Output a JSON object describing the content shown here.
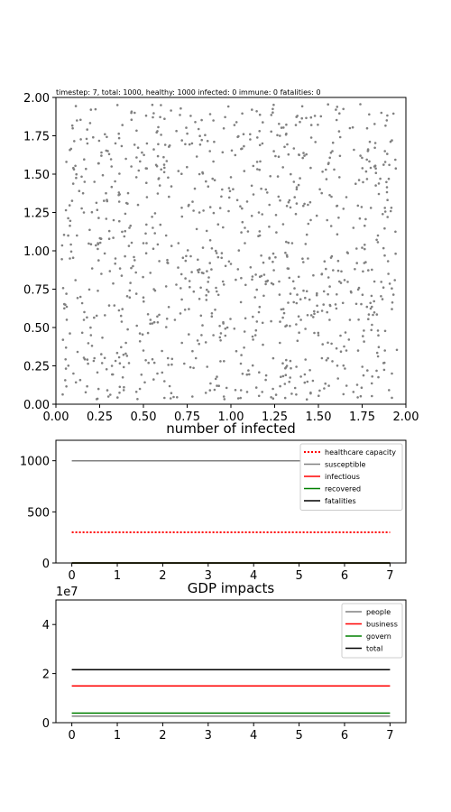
{
  "status_text": "timestep: 7, total: 1000, healthy: 1000 infected: 0 immune: 0 fatalities: 0",
  "colors": {
    "points": "#808080",
    "healthcare_capacity": "#ff0000",
    "susceptible": "#808080",
    "infectious": "#ff0000",
    "recovered": "#008000",
    "fatalities": "#000000",
    "people": "#808080",
    "business": "#ff0000",
    "govern": "#008000",
    "total": "#000000"
  },
  "chart_data": [
    {
      "type": "scatter",
      "title": "",
      "xlim": [
        0,
        2
      ],
      "ylim": [
        0,
        2
      ],
      "x_ticks": [
        "0.00",
        "0.25",
        "0.50",
        "0.75",
        "1.00",
        "1.25",
        "1.50",
        "1.75",
        "2.00"
      ],
      "y_ticks": [
        "0.00",
        "0.25",
        "0.50",
        "0.75",
        "1.00",
        "1.25",
        "1.50",
        "1.75",
        "2.00"
      ],
      "point_count": 1000,
      "population": {
        "healthy": 1000,
        "infected": 0,
        "immune": 0,
        "fatalities": 0
      },
      "sample_points": [
        [
          0.06,
          1.58
        ],
        [
          0.12,
          1.85
        ],
        [
          0.18,
          1.7
        ],
        [
          0.22,
          1.45
        ],
        [
          0.28,
          1.76
        ],
        [
          0.33,
          1.2
        ],
        [
          0.4,
          1.6
        ],
        [
          0.45,
          1.9
        ],
        [
          0.52,
          1.35
        ],
        [
          0.58,
          1.78
        ],
        [
          0.63,
          1.1
        ],
        [
          0.7,
          1.52
        ],
        [
          0.77,
          1.88
        ],
        [
          0.82,
          1.25
        ],
        [
          0.88,
          1.65
        ],
        [
          0.95,
          1.4
        ],
        [
          1.02,
          1.82
        ],
        [
          1.08,
          1.15
        ],
        [
          1.15,
          1.58
        ],
        [
          1.22,
          1.3
        ],
        [
          1.28,
          1.75
        ],
        [
          1.35,
          1.05
        ],
        [
          1.42,
          1.62
        ],
        [
          1.48,
          1.88
        ],
        [
          1.55,
          1.2
        ],
        [
          1.62,
          1.48
        ],
        [
          1.68,
          1.8
        ],
        [
          1.75,
          1.02
        ],
        [
          1.82,
          1.55
        ],
        [
          1.88,
          1.28
        ],
        [
          1.92,
          1.72
        ],
        [
          0.08,
          0.95
        ],
        [
          0.14,
          0.7
        ],
        [
          0.2,
          0.45
        ],
        [
          0.26,
          0.85
        ],
        [
          0.32,
          0.25
        ],
        [
          0.38,
          0.62
        ],
        [
          0.44,
          0.9
        ],
        [
          0.5,
          0.35
        ],
        [
          0.56,
          0.75
        ],
        [
          0.62,
          0.15
        ],
        [
          0.68,
          0.55
        ],
        [
          0.74,
          0.82
        ],
        [
          0.8,
          0.3
        ],
        [
          0.86,
          0.68
        ],
        [
          0.92,
          0.12
        ],
        [
          0.98,
          0.5
        ],
        [
          1.04,
          0.88
        ],
        [
          1.1,
          0.22
        ],
        [
          1.16,
          0.6
        ],
        [
          1.22,
          0.95
        ],
        [
          1.28,
          0.4
        ],
        [
          1.34,
          0.72
        ],
        [
          1.4,
          0.18
        ],
        [
          1.46,
          0.58
        ],
        [
          1.52,
          0.85
        ],
        [
          1.58,
          0.28
        ],
        [
          1.64,
          0.66
        ],
        [
          1.7,
          0.08
        ],
        [
          1.76,
          0.48
        ],
        [
          1.82,
          0.8
        ],
        [
          1.88,
          0.35
        ],
        [
          1.92,
          0.62
        ],
        [
          0.1,
          0.2
        ],
        [
          0.24,
          1.05
        ],
        [
          0.36,
          1.38
        ],
        [
          0.48,
          0.1
        ],
        [
          0.6,
          1.95
        ],
        [
          0.72,
          0.4
        ],
        [
          0.84,
          1.02
        ],
        [
          0.96,
          0.78
        ],
        [
          1.12,
          1.92
        ],
        [
          1.24,
          0.1
        ],
        [
          1.36,
          1.45
        ],
        [
          1.5,
          0.45
        ],
        [
          1.6,
          1.92
        ],
        [
          1.72,
          0.92
        ],
        [
          1.84,
          1.1
        ],
        [
          0.16,
          1.25
        ],
        [
          0.3,
          0.05
        ],
        [
          0.42,
          1.15
        ],
        [
          0.54,
          0.55
        ],
        [
          0.66,
          1.42
        ],
        [
          0.78,
          0.05
        ],
        [
          0.9,
          1.85
        ],
        [
          1.06,
          0.32
        ],
        [
          1.18,
          1.7
        ],
        [
          1.3,
          0.62
        ],
        [
          1.44,
          1.3
        ],
        [
          1.56,
          0.12
        ],
        [
          1.66,
          1.35
        ],
        [
          1.78,
          0.22
        ],
        [
          1.86,
          1.9
        ],
        [
          0.04,
          0.42
        ],
        [
          0.2,
          1.92
        ],
        [
          0.46,
          0.72
        ],
        [
          0.7,
          1.05
        ],
        [
          0.94,
          0.28
        ],
        [
          1.2,
          0.8
        ],
        [
          1.46,
          1.82
        ],
        [
          1.68,
          0.55
        ],
        [
          1.9,
          0.85
        ],
        [
          0.28,
          0.58
        ],
        [
          0.52,
          1.7
        ],
        [
          0.76,
          0.62
        ],
        [
          1.0,
          1.48
        ],
        [
          1.26,
          1.12
        ],
        [
          1.52,
          0.3
        ],
        [
          1.74,
          1.62
        ],
        [
          0.12,
          1.1
        ],
        [
          0.38,
          1.82
        ],
        [
          0.64,
          0.3
        ],
        [
          0.88,
          0.92
        ],
        [
          1.14,
          0.45
        ],
        [
          1.38,
          1.88
        ],
        [
          1.62,
          0.8
        ],
        [
          1.84,
          0.48
        ],
        [
          0.06,
          0.72
        ],
        [
          0.34,
          0.95
        ],
        [
          0.58,
          0.2
        ],
        [
          0.82,
          1.5
        ],
        [
          1.08,
          1.05
        ],
        [
          1.32,
          0.25
        ],
        [
          1.58,
          1.65
        ],
        [
          1.8,
          1.28
        ],
        [
          0.22,
          0.3
        ],
        [
          0.46,
          1.48
        ],
        [
          0.72,
          1.72
        ],
        [
          0.96,
          0.05
        ],
        [
          1.2,
          1.4
        ],
        [
          1.44,
          0.95
        ],
        [
          1.7,
          1.15
        ],
        [
          1.92,
          0.2
        ],
        [
          0.16,
          0.55
        ],
        [
          0.4,
          0.4
        ],
        [
          0.64,
          0.92
        ],
        [
          0.9,
          0.45
        ],
        [
          1.16,
          1.25
        ],
        [
          1.4,
          0.55
        ],
        [
          1.66,
          0.35
        ],
        [
          1.88,
          1.65
        ],
        [
          0.26,
          1.62
        ],
        [
          0.5,
          1.05
        ],
        [
          0.76,
          1.3
        ]
      ]
    },
    {
      "type": "line",
      "title": "number of infected",
      "x": [
        0,
        1,
        2,
        3,
        4,
        5,
        6,
        7
      ],
      "xlim": [
        -0.35,
        7.35
      ],
      "ylim": [
        0,
        1200
      ],
      "x_ticks": [
        "0",
        "1",
        "2",
        "3",
        "4",
        "5",
        "6",
        "7"
      ],
      "y_ticks": [
        "0",
        "500",
        "1000"
      ],
      "legend_position": "upper right",
      "series": [
        {
          "name": "healthcare capacity",
          "values": [
            300,
            300,
            300,
            300,
            300,
            300,
            300,
            300
          ],
          "style": "dotted"
        },
        {
          "name": "susceptible",
          "values": [
            1000,
            1000,
            1000,
            1000,
            1000,
            1000,
            1000,
            1000
          ],
          "style": "solid"
        },
        {
          "name": "infectious",
          "values": [
            0,
            0,
            0,
            0,
            0,
            0,
            0,
            0
          ],
          "style": "solid"
        },
        {
          "name": "recovered",
          "values": [
            0,
            0,
            0,
            0,
            0,
            0,
            0,
            0
          ],
          "style": "solid"
        },
        {
          "name": "fatalities",
          "values": [
            0,
            0,
            0,
            0,
            0,
            0,
            0,
            0
          ],
          "style": "solid"
        }
      ]
    },
    {
      "type": "line",
      "title": "GDP impacts",
      "x": [
        0,
        1,
        2,
        3,
        4,
        5,
        6,
        7
      ],
      "xlim": [
        -0.35,
        7.35
      ],
      "ylim": [
        0,
        50000000
      ],
      "x_ticks": [
        "0",
        "1",
        "2",
        "3",
        "4",
        "5",
        "6",
        "7"
      ],
      "y_ticks": [
        "0",
        "2",
        "4"
      ],
      "y_exponent_label": "1e7",
      "legend_position": "upper right",
      "series": [
        {
          "name": "people",
          "values": [
            2700000,
            2700000,
            2700000,
            2700000,
            2700000,
            2700000,
            2700000,
            2700000
          ],
          "style": "solid"
        },
        {
          "name": "business",
          "values": [
            15000000,
            15000000,
            15000000,
            15000000,
            15000000,
            15000000,
            15000000,
            15000000
          ],
          "style": "solid"
        },
        {
          "name": "govern",
          "values": [
            3900000,
            3900000,
            3900000,
            3900000,
            3900000,
            3900000,
            3900000,
            3900000
          ],
          "style": "solid"
        },
        {
          "name": "total",
          "values": [
            21600000,
            21600000,
            21600000,
            21600000,
            21600000,
            21600000,
            21600000,
            21600000
          ],
          "style": "solid"
        }
      ]
    }
  ]
}
